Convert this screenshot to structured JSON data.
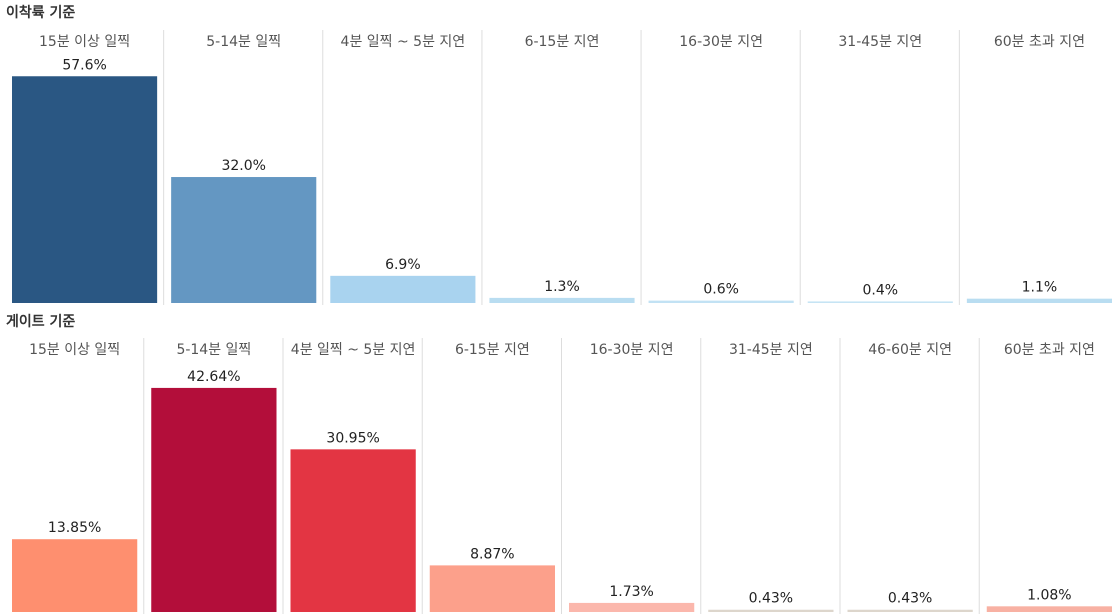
{
  "chart_data": [
    {
      "type": "bar",
      "title": "이착륙 기준",
      "categories": [
        "15분 이상 일찍",
        "5-14분 일찍",
        "4분 일찍 ~ 5분 지연",
        "6-15분 지연",
        "16-30분 지연",
        "31-45분 지연",
        "60분 초과 지연"
      ],
      "values": [
        57.6,
        32.0,
        6.9,
        1.3,
        0.6,
        0.4,
        1.1
      ],
      "value_labels": [
        "57.6%",
        "32.0%",
        "6.9%",
        "1.3%",
        "0.6%",
        "0.4%",
        "1.1%"
      ],
      "colors": [
        "#2a5783",
        "#6497c2",
        "#a9d3ef",
        "#b9ddf1",
        "#c2e2f4",
        "#c6e4f4",
        "#b9ddf1"
      ],
      "ylim": [
        0,
        63
      ]
    },
    {
      "type": "bar",
      "title": "게이트 기준",
      "categories": [
        "15분 이상 일찍",
        "5-14분 일찍",
        "4분 일찍 ~ 5분 지연",
        "6-15분 지연",
        "16-30분 지연",
        "31-45분 지연",
        "46-60분 지연",
        "60분 초과 지연"
      ],
      "values": [
        13.85,
        42.64,
        30.95,
        8.87,
        1.73,
        0.43,
        0.43,
        1.08
      ],
      "value_labels": [
        "13.85%",
        "42.64%",
        "30.95%",
        "8.87%",
        "1.73%",
        "0.43%",
        "0.43%",
        "1.08%"
      ],
      "colors": [
        "#fe8f6f",
        "#b30e3a",
        "#e33543",
        "#fca08b",
        "#fbb7ac",
        "#ddd6cc",
        "#ddd6cc",
        "#f8b1a3"
      ],
      "ylim": [
        0,
        47
      ]
    }
  ]
}
